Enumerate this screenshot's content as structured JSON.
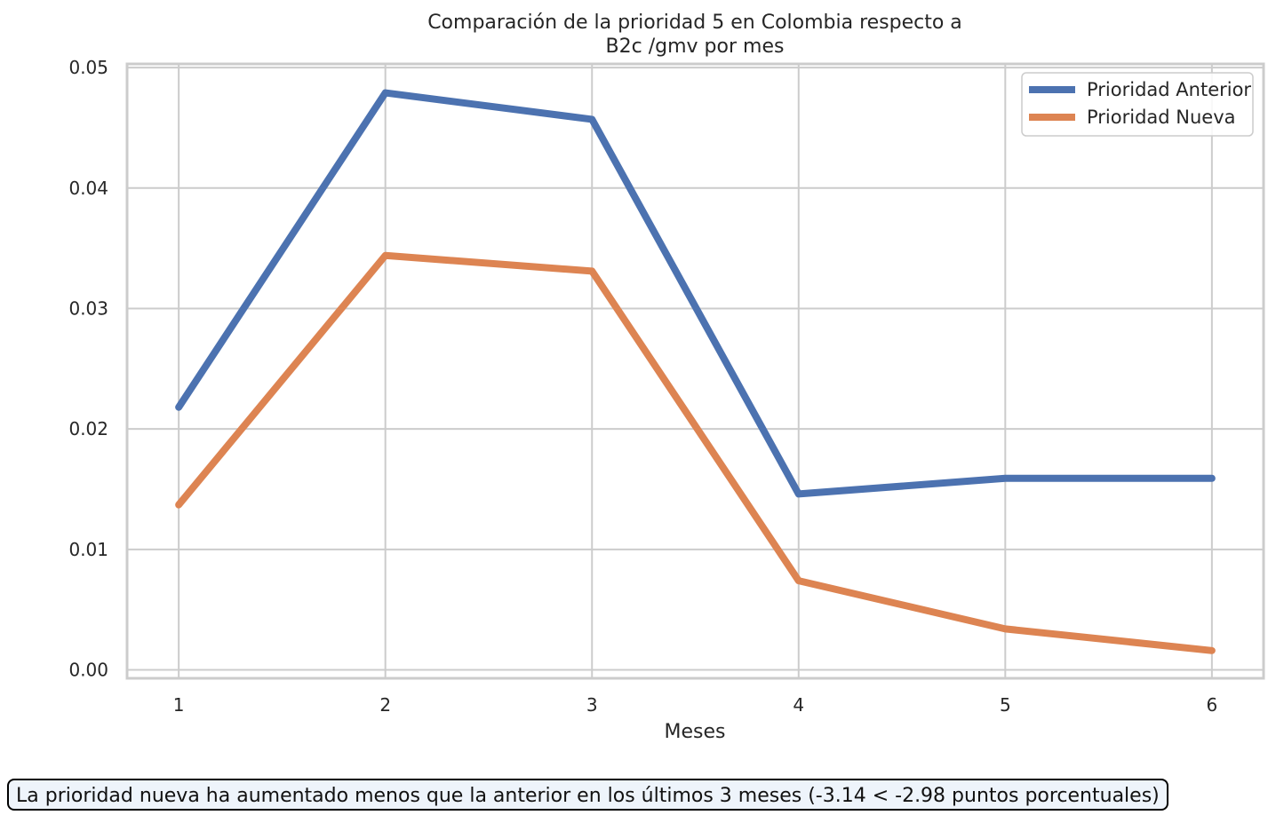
{
  "chart_data": {
    "type": "line",
    "title_line1": "Comparación de la prioridad 5 en Colombia respecto a",
    "title_line2": "B2c /gmv por mes",
    "xlabel": "Meses",
    "ylabel": "",
    "x": [
      1,
      2,
      3,
      4,
      5,
      6
    ],
    "xticks": [
      "1",
      "2",
      "3",
      "4",
      "5",
      "6"
    ],
    "yticks": [
      "0.00",
      "0.01",
      "0.02",
      "0.03",
      "0.04",
      "0.05"
    ],
    "ylim": [
      -0.0007,
      0.0503
    ],
    "xlim": [
      0.75,
      6.25
    ],
    "grid": true,
    "legend_position": "top-right",
    "series": [
      {
        "name": "Prioridad Anterior",
        "color": "#4c72b0",
        "values": [
          0.0218,
          0.0479,
          0.0457,
          0.0146,
          0.0159,
          0.0159
        ]
      },
      {
        "name": "Prioridad Nueva",
        "color": "#dd8452",
        "values": [
          0.0137,
          0.0344,
          0.0331,
          0.0074,
          0.0034,
          0.0016
        ]
      }
    ]
  },
  "annotation": {
    "text": "La prioridad nueva ha aumentado menos que la anterior en los últimos 3 meses (-3.14 < -2.98 puntos porcentuales)"
  }
}
